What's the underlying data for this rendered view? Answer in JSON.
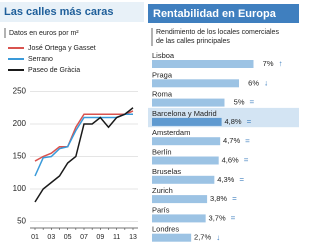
{
  "chart_data": [
    {
      "type": "line",
      "title": "Las calles más caras",
      "subtitle": "Datos en euros por m²",
      "categories": [
        "01",
        null,
        "03",
        null,
        "05",
        null,
        "07",
        null,
        "09",
        null,
        "11",
        null,
        "13"
      ],
      "series": [
        {
          "name": "José Ortega y Gasset",
          "color": "#d9534f",
          "values": [
            143,
            150,
            155,
            165,
            165,
            195,
            215,
            215,
            215,
            215,
            215,
            215,
            220
          ]
        },
        {
          "name": "Serrano",
          "color": "#3a9ad9",
          "values": [
            120,
            148,
            150,
            162,
            165,
            190,
            210,
            210,
            210,
            210,
            210,
            215,
            215
          ]
        },
        {
          "name": "Paseo de Gràcia",
          "color": "#1a1a1a",
          "values": [
            80,
            100,
            110,
            120,
            140,
            150,
            200,
            200,
            210,
            195,
            210,
            215,
            225
          ]
        }
      ],
      "ylim": [
        40,
        260
      ],
      "yticks": [
        50,
        100,
        150,
        200,
        250
      ],
      "grid": true
    },
    {
      "type": "hbar",
      "title": "Rentabilidad en Europa",
      "subtitle": [
        "Rendimiento de los locales comerciales",
        "de las calles principales"
      ],
      "categories": [
        "Lisboa",
        "Praga",
        "Roma",
        "Barcelona y Madrid",
        "Amsterdam",
        "Berlín",
        "Bruselas",
        "Zurich",
        "París",
        "Londres"
      ],
      "values": [
        7,
        6,
        5,
        4.8,
        4.7,
        4.6,
        4.3,
        3.8,
        3.7,
        2.7
      ],
      "value_labels": [
        "7%",
        "6%",
        "5%",
        "4,8%",
        "4,7%",
        "4,6%",
        "4,3%",
        "3,8%",
        "3,7%",
        "2,7%"
      ],
      "trends": [
        "↑",
        "↓",
        "=",
        "=",
        "=",
        "=",
        "=",
        "=",
        "=",
        "↓"
      ],
      "color": "#9cc3e4",
      "highlight": 3
    }
  ]
}
